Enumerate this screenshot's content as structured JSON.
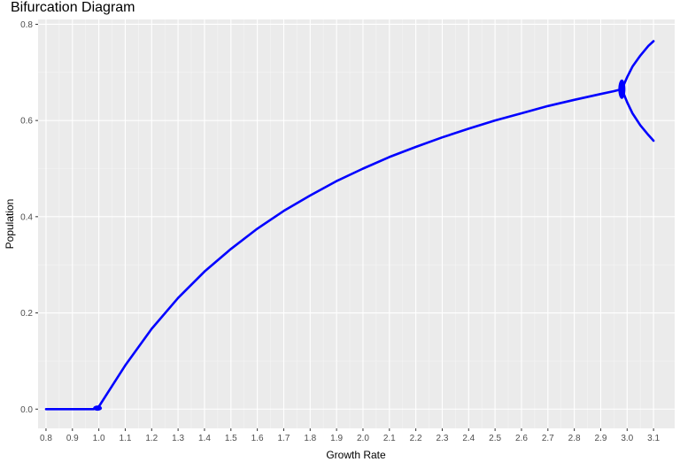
{
  "chart_data": {
    "type": "scatter",
    "title": "Bifurcation Diagram",
    "xlabel": "Growth Rate",
    "ylabel": "Population",
    "xlim": [
      0.77,
      3.18
    ],
    "ylim": [
      -0.04,
      0.81
    ],
    "x_ticks": [
      "0.8",
      "0.9",
      "1.0",
      "1.1",
      "1.2",
      "1.3",
      "1.4",
      "1.5",
      "1.6",
      "1.7",
      "1.8",
      "1.9",
      "2.0",
      "2.1",
      "2.2",
      "2.3",
      "2.4",
      "2.5",
      "2.6",
      "2.7",
      "2.8",
      "2.9",
      "3.0",
      "3.1"
    ],
    "y_ticks": [
      "0.0",
      "0.2",
      "0.4",
      "0.6",
      "0.8"
    ],
    "grid": true,
    "series": [
      {
        "color": "#0000ff",
        "points": [
          {
            "x": 0.8,
            "y": 0.0
          },
          {
            "x": 0.9,
            "y": 0.0
          },
          {
            "x": 0.95,
            "y": 0.0
          },
          {
            "x": 0.98,
            "y": 0.0
          },
          {
            "x": 1.0,
            "y": 0.005
          },
          {
            "x": 1.05,
            "y": 0.048
          },
          {
            "x": 1.1,
            "y": 0.091
          },
          {
            "x": 1.2,
            "y": 0.167
          },
          {
            "x": 1.3,
            "y": 0.231
          },
          {
            "x": 1.4,
            "y": 0.286
          },
          {
            "x": 1.5,
            "y": 0.333
          },
          {
            "x": 1.6,
            "y": 0.375
          },
          {
            "x": 1.7,
            "y": 0.412
          },
          {
            "x": 1.8,
            "y": 0.444
          },
          {
            "x": 1.9,
            "y": 0.474
          },
          {
            "x": 2.0,
            "y": 0.5
          },
          {
            "x": 2.1,
            "y": 0.524
          },
          {
            "x": 2.2,
            "y": 0.545
          },
          {
            "x": 2.3,
            "y": 0.565
          },
          {
            "x": 2.4,
            "y": 0.583
          },
          {
            "x": 2.5,
            "y": 0.6
          },
          {
            "x": 2.6,
            "y": 0.615
          },
          {
            "x": 2.7,
            "y": 0.63
          },
          {
            "x": 2.8,
            "y": 0.643
          },
          {
            "x": 2.9,
            "y": 0.655
          },
          {
            "x": 2.95,
            "y": 0.661
          },
          {
            "x": 2.98,
            "y": 0.665
          }
        ]
      }
    ],
    "branches": [
      {
        "color": "#0000ff",
        "points": [
          {
            "x": 2.98,
            "y": 0.665
          },
          {
            "x": 3.0,
            "y": 0.69
          },
          {
            "x": 3.02,
            "y": 0.712
          },
          {
            "x": 3.05,
            "y": 0.735
          },
          {
            "x": 3.08,
            "y": 0.755
          },
          {
            "x": 3.1,
            "y": 0.765
          }
        ]
      },
      {
        "color": "#0000ff",
        "points": [
          {
            "x": 2.98,
            "y": 0.665
          },
          {
            "x": 3.0,
            "y": 0.638
          },
          {
            "x": 3.02,
            "y": 0.615
          },
          {
            "x": 3.05,
            "y": 0.59
          },
          {
            "x": 3.08,
            "y": 0.57
          },
          {
            "x": 3.1,
            "y": 0.558
          }
        ]
      }
    ]
  }
}
